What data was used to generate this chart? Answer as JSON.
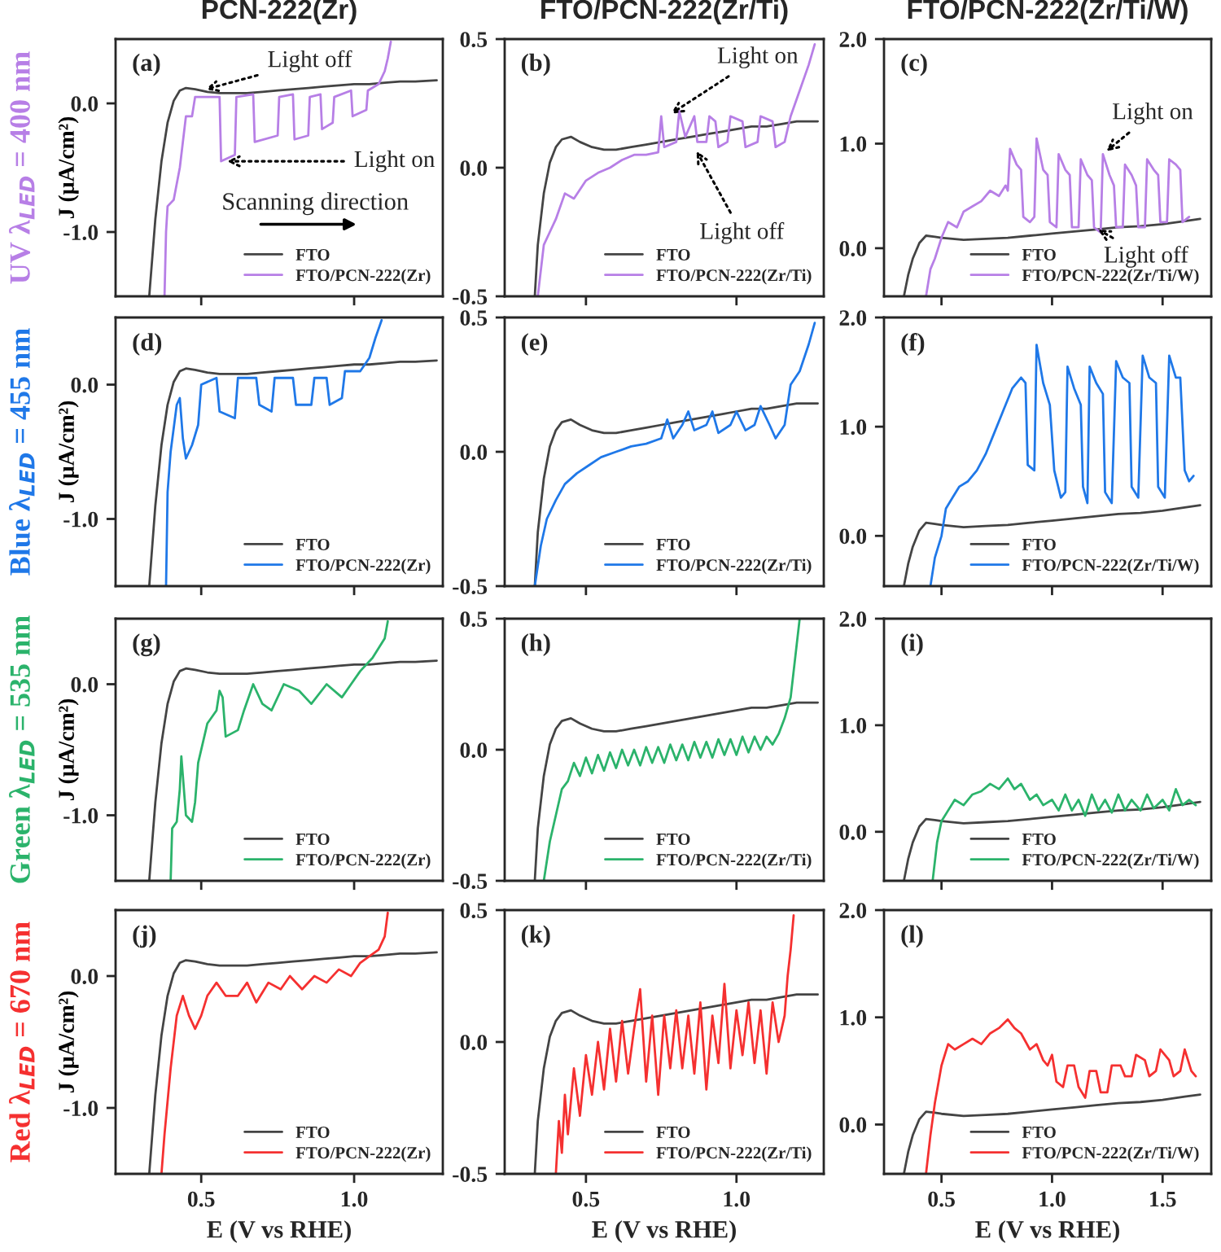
{
  "chart_data": [
    {
      "type": "line",
      "title": "PCN-222(Zr)",
      "ylabel": "UV λ$_{LED}$ = 400 nm\nJ (μA/cm²)",
      "xlim": [
        0.22,
        1.29
      ],
      "ylim": [
        -1.5,
        0.5
      ],
      "xticks": [
        {
          "value": 0.5,
          "label": null
        },
        {
          "value": 1.0,
          "label": null
        }
      ],
      "yticks": [
        {
          "value": -1.0,
          "label": "-1.0"
        },
        {
          "value": 0.0,
          "label": "0.0"
        }
      ],
      "tick_labels": "y",
      "legend": "bottom right",
      "annotations": [
        "(a)",
        {
          "text": "Light off",
          "x": 0.5,
          "y": 0.1
        },
        {
          "text": "Light on",
          "x": 0.57,
          "y": -0.45
        },
        "Scanning direction"
      ],
      "series": [
        {
          "name": "FTO",
          "color": "#444444",
          "x": [
            0.33,
            0.35,
            0.37,
            0.39,
            0.41,
            0.43,
            0.45,
            0.48,
            0.52,
            0.56,
            0.6,
            0.65,
            0.7,
            0.75,
            0.8,
            0.85,
            0.9,
            0.95,
            1.0,
            1.05,
            1.1,
            1.15,
            1.2,
            1.27
          ],
          "values": [
            -1.5,
            -0.9,
            -0.45,
            -0.15,
            0.02,
            0.1,
            0.12,
            0.11,
            0.09,
            0.08,
            0.08,
            0.08,
            0.09,
            0.1,
            0.11,
            0.12,
            0.13,
            0.14,
            0.15,
            0.15,
            0.16,
            0.17,
            0.17,
            0.18
          ]
        },
        {
          "name": "FTO/PCN-222(Zr)",
          "color": "#b77fe6",
          "x": [
            0.38,
            0.385,
            0.39,
            0.41,
            0.43,
            0.45,
            0.47,
            0.48,
            0.56,
            0.565,
            0.61,
            0.615,
            0.67,
            0.675,
            0.75,
            0.755,
            0.8,
            0.805,
            0.85,
            0.855,
            0.89,
            0.895,
            0.93,
            0.935,
            0.99,
            0.995,
            1.04,
            1.045,
            1.08,
            1.1,
            1.11,
            1.12
          ],
          "values": [
            -1.5,
            -1.0,
            -0.8,
            -0.75,
            -0.5,
            -0.1,
            -0.1,
            0.05,
            0.05,
            -0.45,
            -0.4,
            0.05,
            0.07,
            -0.3,
            -0.25,
            0.05,
            0.07,
            -0.28,
            -0.25,
            0.05,
            0.07,
            -0.2,
            -0.15,
            0.05,
            0.1,
            -0.1,
            -0.05,
            0.1,
            0.15,
            0.25,
            0.35,
            0.48
          ]
        }
      ]
    },
    {
      "type": "line",
      "title": "FTO/PCN-222(Zr/Ti)",
      "xlim": [
        0.23,
        1.29
      ],
      "ylim": [
        -0.5,
        0.5
      ],
      "xticks": [
        {
          "value": 0.5,
          "label": null
        },
        {
          "value": 1.0,
          "label": null
        }
      ],
      "yticks": [
        {
          "value": -0.5,
          "label": "-0.5"
        },
        {
          "value": 0.0,
          "label": "0.0"
        },
        {
          "value": 0.5,
          "label": "0.5"
        }
      ],
      "tick_labels": "y",
      "legend": "bottom right",
      "annotations": [
        "(b)",
        {
          "text": "Light on",
          "x": 0.77,
          "y": 0.2
        },
        {
          "text": "Light off",
          "x": 0.86,
          "y": 0.08
        }
      ],
      "series": [
        {
          "name": "FTO",
          "color": "#444444",
          "x": [
            0.33,
            0.34,
            0.36,
            0.38,
            0.4,
            0.42,
            0.45,
            0.48,
            0.52,
            0.56,
            0.6,
            0.65,
            0.7,
            0.75,
            0.8,
            0.85,
            0.9,
            0.95,
            1.0,
            1.05,
            1.1,
            1.15,
            1.2,
            1.27
          ],
          "values": [
            -0.5,
            -0.3,
            -0.1,
            0.02,
            0.08,
            0.11,
            0.12,
            0.1,
            0.08,
            0.07,
            0.07,
            0.08,
            0.09,
            0.1,
            0.11,
            0.12,
            0.13,
            0.14,
            0.15,
            0.16,
            0.16,
            0.17,
            0.18,
            0.18
          ]
        },
        {
          "name": "FTO/PCN-222(Zr/Ti)",
          "color": "#b77fe6",
          "x": [
            0.34,
            0.36,
            0.38,
            0.4,
            0.43,
            0.46,
            0.5,
            0.54,
            0.58,
            0.62,
            0.66,
            0.7,
            0.74,
            0.75,
            0.76,
            0.8,
            0.81,
            0.83,
            0.86,
            0.87,
            0.9,
            0.91,
            0.93,
            0.94,
            0.97,
            0.98,
            1.02,
            1.03,
            1.07,
            1.08,
            1.12,
            1.13,
            1.16,
            1.18,
            1.21,
            1.24,
            1.26
          ],
          "values": [
            -0.5,
            -0.3,
            -0.25,
            -0.2,
            -0.1,
            -0.12,
            -0.05,
            -0.02,
            0.0,
            0.03,
            0.05,
            0.05,
            0.06,
            0.2,
            0.08,
            0.1,
            0.22,
            0.12,
            0.2,
            0.1,
            0.1,
            0.2,
            0.18,
            0.08,
            0.1,
            0.2,
            0.18,
            0.08,
            0.1,
            0.2,
            0.18,
            0.08,
            0.1,
            0.2,
            0.3,
            0.4,
            0.48
          ]
        }
      ]
    },
    {
      "type": "line",
      "title": "FTO/PCN-222(Zr/Ti/W)",
      "xlim": [
        0.24,
        1.72
      ],
      "ylim": [
        -0.46,
        2.0
      ],
      "xticks": [
        {
          "value": 0.5,
          "label": null
        },
        {
          "value": 1.0,
          "label": null
        },
        {
          "value": 1.5,
          "label": null
        }
      ],
      "yticks": [
        {
          "value": 0.0,
          "label": "0.0"
        },
        {
          "value": 1.0,
          "label": "1.0"
        },
        {
          "value": 2.0,
          "label": "2.0"
        }
      ],
      "tick_labels": "y",
      "legend": "bottom right",
      "annotations": [
        "(c)",
        {
          "text": "Light on",
          "x": 1.23,
          "y": 0.9
        },
        {
          "text": "Light off",
          "x": 1.19,
          "y": 0.2
        }
      ],
      "series": [
        {
          "name": "FTO",
          "color": "#444444",
          "x": [
            0.33,
            0.35,
            0.37,
            0.4,
            0.43,
            0.47,
            0.5,
            0.6,
            0.7,
            0.8,
            0.9,
            1.0,
            1.1,
            1.2,
            1.3,
            1.4,
            1.5,
            1.6,
            1.67
          ],
          "values": [
            -0.46,
            -0.25,
            -0.1,
            0.05,
            0.12,
            0.11,
            0.1,
            0.08,
            0.09,
            0.1,
            0.12,
            0.14,
            0.16,
            0.18,
            0.2,
            0.21,
            0.23,
            0.26,
            0.28
          ]
        },
        {
          "name": "FTO/PCN-222(Zr/Ti/W)",
          "color": "#b77fe6",
          "x": [
            0.43,
            0.45,
            0.47,
            0.5,
            0.53,
            0.57,
            0.6,
            0.64,
            0.68,
            0.72,
            0.76,
            0.79,
            0.8,
            0.81,
            0.84,
            0.86,
            0.87,
            0.9,
            0.92,
            0.93,
            0.96,
            0.98,
            0.99,
            1.02,
            1.03,
            1.06,
            1.08,
            1.09,
            1.12,
            1.13,
            1.16,
            1.18,
            1.19,
            1.22,
            1.23,
            1.26,
            1.28,
            1.29,
            1.32,
            1.33,
            1.36,
            1.38,
            1.39,
            1.42,
            1.43,
            1.46,
            1.48,
            1.49,
            1.52,
            1.53,
            1.56,
            1.58,
            1.59,
            1.62
          ],
          "values": [
            -0.46,
            -0.2,
            -0.1,
            0.1,
            0.25,
            0.2,
            0.35,
            0.4,
            0.45,
            0.55,
            0.5,
            0.6,
            0.55,
            0.95,
            0.8,
            0.75,
            0.3,
            0.25,
            0.3,
            1.05,
            0.75,
            0.7,
            0.25,
            0.2,
            0.9,
            0.75,
            0.7,
            0.2,
            0.2,
            0.85,
            0.7,
            0.65,
            0.2,
            0.15,
            0.9,
            0.7,
            0.6,
            0.2,
            0.2,
            0.8,
            0.7,
            0.6,
            0.2,
            0.2,
            0.85,
            0.75,
            0.7,
            0.25,
            0.25,
            0.85,
            0.8,
            0.75,
            0.25,
            0.3
          ]
        }
      ]
    },
    {
      "type": "line",
      "ylabel": "Blue λ$_{LED}$ = 455 nm\nJ (μA/cm²)",
      "xlim": [
        0.22,
        1.29
      ],
      "ylim": [
        -1.5,
        0.5
      ],
      "xticks": [
        {
          "value": 0.5,
          "label": null
        },
        {
          "value": 1.0,
          "label": null
        }
      ],
      "yticks": [
        {
          "value": -1.0,
          "label": "-1.0"
        },
        {
          "value": 0.0,
          "label": "0.0"
        }
      ],
      "tick_labels": "y",
      "legend": "bottom right",
      "annotations": [
        "(d)"
      ],
      "series": [
        {
          "name": "FTO",
          "color": "#444444",
          "x": [
            0.33,
            0.35,
            0.37,
            0.39,
            0.41,
            0.43,
            0.45,
            0.48,
            0.52,
            0.56,
            0.6,
            0.65,
            0.7,
            0.75,
            0.8,
            0.85,
            0.9,
            0.95,
            1.0,
            1.05,
            1.1,
            1.15,
            1.2,
            1.27
          ],
          "values": [
            -1.5,
            -0.9,
            -0.45,
            -0.15,
            0.02,
            0.1,
            0.12,
            0.11,
            0.09,
            0.08,
            0.08,
            0.08,
            0.09,
            0.1,
            0.11,
            0.12,
            0.13,
            0.14,
            0.15,
            0.15,
            0.16,
            0.17,
            0.17,
            0.18
          ]
        },
        {
          "name": "FTO/PCN-222(Zr)",
          "color": "#1f78e8",
          "x": [
            0.385,
            0.39,
            0.4,
            0.42,
            0.43,
            0.44,
            0.45,
            0.47,
            0.49,
            0.5,
            0.55,
            0.56,
            0.61,
            0.62,
            0.68,
            0.69,
            0.73,
            0.74,
            0.8,
            0.81,
            0.86,
            0.87,
            0.91,
            0.92,
            0.96,
            0.97,
            1.02,
            1.05,
            1.07,
            1.09
          ],
          "values": [
            -1.5,
            -0.8,
            -0.5,
            -0.15,
            -0.1,
            -0.4,
            -0.55,
            -0.45,
            -0.3,
            0.0,
            0.05,
            -0.2,
            -0.25,
            0.05,
            0.05,
            -0.15,
            -0.2,
            0.05,
            0.05,
            -0.15,
            -0.15,
            0.05,
            0.05,
            -0.15,
            -0.1,
            0.1,
            0.1,
            0.2,
            0.35,
            0.48
          ]
        }
      ]
    },
    {
      "type": "line",
      "ylim": [
        -0.5,
        0.5
      ],
      "xticks": [
        {
          "value": 0.5,
          "label": null
        },
        {
          "value": 1.0,
          "label": null
        }
      ],
      "yticks": [
        {
          "value": -0.5,
          "label": "-0.5"
        },
        {
          "value": 0.0,
          "label": "0.0"
        },
        {
          "value": 0.5,
          "label": "0.5"
        }
      ],
      "tick_labels": "y",
      "legend": "bottom right",
      "annotations": [
        "(e)"
      ],
      "xlim": [
        0.23,
        1.29
      ],
      "series": [
        {
          "name": "FTO",
          "color": "#444444",
          "x": [
            0.33,
            0.34,
            0.36,
            0.38,
            0.4,
            0.42,
            0.45,
            0.48,
            0.52,
            0.56,
            0.6,
            0.65,
            0.7,
            0.75,
            0.8,
            0.85,
            0.9,
            0.95,
            1.0,
            1.05,
            1.1,
            1.15,
            1.2,
            1.27
          ],
          "values": [
            -0.5,
            -0.3,
            -0.1,
            0.02,
            0.08,
            0.11,
            0.12,
            0.1,
            0.08,
            0.07,
            0.07,
            0.08,
            0.09,
            0.1,
            0.11,
            0.12,
            0.13,
            0.14,
            0.15,
            0.16,
            0.16,
            0.17,
            0.18,
            0.18
          ]
        },
        {
          "name": "FTO/PCN-222(Zr/Ti)",
          "color": "#1f78e8",
          "x": [
            0.33,
            0.35,
            0.37,
            0.4,
            0.43,
            0.47,
            0.51,
            0.55,
            0.6,
            0.65,
            0.7,
            0.75,
            0.77,
            0.79,
            0.82,
            0.84,
            0.86,
            0.9,
            0.92,
            0.94,
            0.98,
            1.0,
            1.03,
            1.06,
            1.08,
            1.11,
            1.13,
            1.16,
            1.18,
            1.21,
            1.24,
            1.26
          ],
          "values": [
            -0.5,
            -0.35,
            -0.25,
            -0.18,
            -0.12,
            -0.08,
            -0.05,
            -0.02,
            0.0,
            0.02,
            0.03,
            0.05,
            0.12,
            0.05,
            0.1,
            0.15,
            0.08,
            0.1,
            0.15,
            0.07,
            0.1,
            0.15,
            0.08,
            0.1,
            0.17,
            0.1,
            0.05,
            0.1,
            0.25,
            0.3,
            0.4,
            0.48
          ]
        }
      ]
    },
    {
      "type": "line",
      "xlim": [
        0.24,
        1.72
      ],
      "ylim": [
        -0.46,
        2.0
      ],
      "xticks": [
        {
          "value": 0.5,
          "label": null
        },
        {
          "value": 1.0,
          "label": null
        },
        {
          "value": 1.5,
          "label": null
        }
      ],
      "yticks": [
        {
          "value": 0.0,
          "label": "0.0"
        },
        {
          "value": 1.0,
          "label": "1.0"
        },
        {
          "value": 2.0,
          "label": "2.0"
        }
      ],
      "tick_labels": "y",
      "legend": "bottom right",
      "annotations": [
        "(f)"
      ],
      "series": [
        {
          "name": "FTO",
          "color": "#444444",
          "x": [
            0.33,
            0.35,
            0.37,
            0.4,
            0.43,
            0.47,
            0.5,
            0.6,
            0.7,
            0.8,
            0.9,
            1.0,
            1.1,
            1.2,
            1.3,
            1.4,
            1.5,
            1.6,
            1.67
          ],
          "values": [
            -0.46,
            -0.25,
            -0.1,
            0.05,
            0.12,
            0.11,
            0.1,
            0.08,
            0.09,
            0.1,
            0.12,
            0.14,
            0.16,
            0.18,
            0.2,
            0.21,
            0.23,
            0.26,
            0.28
          ]
        },
        {
          "name": "FTO/PCN-222(Zr/Ti/W)",
          "color": "#1f78e8",
          "x": [
            0.45,
            0.47,
            0.5,
            0.52,
            0.55,
            0.58,
            0.62,
            0.66,
            0.7,
            0.74,
            0.78,
            0.82,
            0.86,
            0.88,
            0.89,
            0.92,
            0.93,
            0.96,
            0.99,
            1.01,
            1.04,
            1.06,
            1.07,
            1.1,
            1.13,
            1.14,
            1.16,
            1.17,
            1.2,
            1.23,
            1.24,
            1.27,
            1.29,
            1.32,
            1.35,
            1.36,
            1.39,
            1.41,
            1.44,
            1.47,
            1.48,
            1.51,
            1.53,
            1.56,
            1.58,
            1.6,
            1.62,
            1.64
          ],
          "values": [
            -0.46,
            -0.2,
            0.0,
            0.25,
            0.35,
            0.45,
            0.5,
            0.6,
            0.75,
            0.95,
            1.15,
            1.35,
            1.45,
            1.4,
            0.65,
            0.6,
            1.75,
            1.4,
            1.2,
            0.6,
            0.35,
            0.4,
            1.55,
            1.35,
            1.2,
            0.45,
            0.3,
            1.55,
            1.4,
            1.3,
            0.4,
            0.3,
            1.6,
            1.45,
            1.4,
            0.45,
            0.35,
            1.65,
            1.45,
            1.4,
            0.45,
            0.35,
            1.65,
            1.45,
            1.45,
            0.6,
            0.5,
            0.55
          ]
        }
      ]
    },
    {
      "type": "line",
      "ylabel": "Green λ$_{LED}$ = 535 nm\nJ (μA/cm²)",
      "xlim": [
        0.22,
        1.29
      ],
      "ylim": [
        -1.5,
        0.5
      ],
      "xticks": [
        {
          "value": 0.5,
          "label": null
        },
        {
          "value": 1.0,
          "label": null
        }
      ],
      "yticks": [
        {
          "value": -1.0,
          "label": "-1.0"
        },
        {
          "value": 0.0,
          "label": "0.0"
        }
      ],
      "tick_labels": "y",
      "legend": "bottom right",
      "annotations": [
        "(g)"
      ],
      "series": [
        {
          "name": "FTO",
          "color": "#444444",
          "x": [
            0.33,
            0.35,
            0.37,
            0.39,
            0.41,
            0.43,
            0.45,
            0.48,
            0.52,
            0.56,
            0.6,
            0.65,
            0.7,
            0.75,
            0.8,
            0.85,
            0.9,
            0.95,
            1.0,
            1.05,
            1.1,
            1.15,
            1.2,
            1.27
          ],
          "values": [
            -1.5,
            -0.9,
            -0.45,
            -0.15,
            0.02,
            0.1,
            0.12,
            0.11,
            0.09,
            0.08,
            0.08,
            0.08,
            0.09,
            0.1,
            0.11,
            0.12,
            0.13,
            0.14,
            0.15,
            0.15,
            0.16,
            0.17,
            0.17,
            0.18
          ]
        },
        {
          "name": "FTO/PCN-222(Zr)",
          "color": "#2bb36b",
          "x": [
            0.4,
            0.405,
            0.42,
            0.43,
            0.435,
            0.44,
            0.45,
            0.47,
            0.48,
            0.49,
            0.52,
            0.55,
            0.56,
            0.57,
            0.58,
            0.62,
            0.64,
            0.67,
            0.7,
            0.73,
            0.77,
            0.82,
            0.86,
            0.91,
            0.96,
            0.99,
            1.02,
            1.06,
            1.1,
            1.11
          ],
          "values": [
            -1.5,
            -1.1,
            -1.05,
            -0.8,
            -0.55,
            -0.7,
            -1.0,
            -1.05,
            -0.9,
            -0.6,
            -0.3,
            -0.2,
            -0.05,
            -0.1,
            -0.4,
            -0.35,
            -0.2,
            0.0,
            -0.15,
            -0.2,
            0.0,
            -0.05,
            -0.15,
            0.0,
            -0.1,
            0.0,
            0.1,
            0.2,
            0.35,
            0.48
          ]
        }
      ]
    },
    {
      "type": "line",
      "xlim": [
        0.23,
        1.29
      ],
      "ylim": [
        -0.5,
        0.5
      ],
      "xticks": [
        {
          "value": 0.5,
          "label": null
        },
        {
          "value": 1.0,
          "label": null
        }
      ],
      "yticks": [
        {
          "value": -0.5,
          "label": "-0.5"
        },
        {
          "value": 0.0,
          "label": "0.0"
        },
        {
          "value": 0.5,
          "label": "0.5"
        }
      ],
      "tick_labels": "y",
      "legend": "bottom right",
      "annotations": [
        "(h)"
      ],
      "series": [
        {
          "name": "FTO",
          "color": "#444444",
          "x": [
            0.33,
            0.34,
            0.36,
            0.38,
            0.4,
            0.42,
            0.45,
            0.48,
            0.52,
            0.56,
            0.6,
            0.65,
            0.7,
            0.75,
            0.8,
            0.85,
            0.9,
            0.95,
            1.0,
            1.05,
            1.1,
            1.15,
            1.2,
            1.27
          ],
          "values": [
            -0.5,
            -0.3,
            -0.1,
            0.02,
            0.08,
            0.11,
            0.12,
            0.1,
            0.08,
            0.07,
            0.07,
            0.08,
            0.09,
            0.1,
            0.11,
            0.12,
            0.13,
            0.14,
            0.15,
            0.16,
            0.16,
            0.17,
            0.18,
            0.18
          ]
        },
        {
          "name": "FTO/PCN-222(Zr/Ti)",
          "color": "#2bb36b",
          "x": [
            0.36,
            0.38,
            0.4,
            0.42,
            0.44,
            0.46,
            0.48,
            0.5,
            0.52,
            0.54,
            0.56,
            0.58,
            0.6,
            0.62,
            0.64,
            0.66,
            0.68,
            0.7,
            0.72,
            0.74,
            0.76,
            0.78,
            0.8,
            0.82,
            0.84,
            0.86,
            0.88,
            0.9,
            0.92,
            0.94,
            0.96,
            0.98,
            1.0,
            1.02,
            1.04,
            1.06,
            1.08,
            1.1,
            1.12,
            1.14,
            1.16,
            1.18,
            1.19,
            1.2,
            1.21
          ],
          "values": [
            -0.5,
            -0.35,
            -0.25,
            -0.15,
            -0.12,
            -0.05,
            -0.1,
            -0.03,
            -0.09,
            -0.02,
            -0.08,
            -0.01,
            -0.07,
            0.0,
            -0.06,
            0.0,
            -0.06,
            0.01,
            -0.05,
            0.01,
            -0.05,
            0.02,
            -0.04,
            0.02,
            -0.04,
            0.03,
            -0.03,
            0.03,
            -0.03,
            0.04,
            -0.02,
            0.04,
            -0.02,
            0.05,
            -0.01,
            0.05,
            0.0,
            0.05,
            0.02,
            0.06,
            0.12,
            0.2,
            0.3,
            0.4,
            0.5
          ]
        }
      ]
    },
    {
      "type": "line",
      "xlim": [
        0.24,
        1.72
      ],
      "ylim": [
        -0.46,
        2.0
      ],
      "xticks": [
        {
          "value": 0.5,
          "label": null
        },
        {
          "value": 1.0,
          "label": null
        },
        {
          "value": 1.5,
          "label": null
        }
      ],
      "yticks": [
        {
          "value": 0.0,
          "label": "0.0"
        },
        {
          "value": 1.0,
          "label": "1.0"
        },
        {
          "value": 2.0,
          "label": "2.0"
        }
      ],
      "tick_labels": "y",
      "legend": "bottom right",
      "annotations": [
        "(i)"
      ],
      "series": [
        {
          "name": "FTO",
          "color": "#444444",
          "x": [
            0.33,
            0.35,
            0.37,
            0.4,
            0.43,
            0.47,
            0.5,
            0.6,
            0.7,
            0.8,
            0.9,
            1.0,
            1.1,
            1.2,
            1.3,
            1.4,
            1.5,
            1.6,
            1.67
          ],
          "values": [
            -0.46,
            -0.25,
            -0.1,
            0.05,
            0.12,
            0.11,
            0.1,
            0.08,
            0.09,
            0.1,
            0.12,
            0.14,
            0.16,
            0.18,
            0.2,
            0.21,
            0.23,
            0.26,
            0.28
          ]
        },
        {
          "name": "FTO/PCN-222(Zr/Ti/W)",
          "color": "#2bb36b",
          "x": [
            0.46,
            0.48,
            0.5,
            0.53,
            0.56,
            0.6,
            0.64,
            0.68,
            0.72,
            0.76,
            0.8,
            0.83,
            0.86,
            0.9,
            0.93,
            0.96,
            1.0,
            1.03,
            1.06,
            1.09,
            1.12,
            1.15,
            1.18,
            1.21,
            1.24,
            1.27,
            1.3,
            1.33,
            1.36,
            1.4,
            1.43,
            1.46,
            1.5,
            1.53,
            1.56,
            1.59,
            1.62,
            1.65
          ],
          "values": [
            -0.46,
            -0.1,
            0.1,
            0.2,
            0.3,
            0.25,
            0.35,
            0.38,
            0.45,
            0.4,
            0.5,
            0.4,
            0.45,
            0.3,
            0.35,
            0.25,
            0.3,
            0.2,
            0.35,
            0.2,
            0.3,
            0.15,
            0.35,
            0.2,
            0.3,
            0.18,
            0.35,
            0.2,
            0.3,
            0.2,
            0.35,
            0.22,
            0.3,
            0.2,
            0.4,
            0.25,
            0.3,
            0.25
          ]
        }
      ]
    },
    {
      "type": "line",
      "ylabel": "Red λ$_{LED}$ = 670 nm\nJ (μA/cm²)",
      "xlabel": "E (V vs RHE)",
      "xlim": [
        0.22,
        1.29
      ],
      "ylim": [
        -1.5,
        0.5
      ],
      "xticks": [
        {
          "value": 0.5,
          "label": "0.5"
        },
        {
          "value": 1.0,
          "label": "1.0"
        }
      ],
      "yticks": [
        {
          "value": -1.0,
          "label": "-1.0"
        },
        {
          "value": 0.0,
          "label": "0.0"
        }
      ],
      "legend": "bottom right",
      "annotations": [
        "(j)"
      ],
      "series": [
        {
          "name": "FTO",
          "color": "#444444",
          "x": [
            0.33,
            0.35,
            0.37,
            0.39,
            0.41,
            0.43,
            0.45,
            0.48,
            0.52,
            0.56,
            0.6,
            0.65,
            0.7,
            0.75,
            0.8,
            0.85,
            0.9,
            0.95,
            1.0,
            1.05,
            1.1,
            1.15,
            1.2,
            1.27
          ],
          "values": [
            -1.5,
            -0.9,
            -0.45,
            -0.15,
            0.02,
            0.1,
            0.12,
            0.11,
            0.09,
            0.08,
            0.08,
            0.08,
            0.09,
            0.1,
            0.11,
            0.12,
            0.13,
            0.14,
            0.15,
            0.15,
            0.16,
            0.17,
            0.17,
            0.18
          ]
        },
        {
          "name": "FTO/PCN-222(Zr)",
          "color": "#f53030",
          "x": [
            0.37,
            0.38,
            0.4,
            0.42,
            0.44,
            0.46,
            0.48,
            0.5,
            0.52,
            0.55,
            0.58,
            0.62,
            0.65,
            0.68,
            0.72,
            0.76,
            0.79,
            0.83,
            0.87,
            0.91,
            0.95,
            0.99,
            1.02,
            1.05,
            1.08,
            1.1,
            1.11
          ],
          "values": [
            -1.5,
            -1.2,
            -0.7,
            -0.3,
            -0.15,
            -0.3,
            -0.4,
            -0.3,
            -0.15,
            -0.05,
            -0.15,
            -0.15,
            -0.05,
            -0.2,
            -0.05,
            -0.1,
            0.0,
            -0.1,
            0.0,
            -0.05,
            0.05,
            0.0,
            0.1,
            0.15,
            0.2,
            0.3,
            0.48
          ]
        }
      ]
    },
    {
      "type": "line",
      "xlabel": "E (V vs RHE)",
      "xlim": [
        0.23,
        1.29
      ],
      "ylim": [
        -0.5,
        0.5
      ],
      "xticks": [
        {
          "value": 0.5,
          "label": "0.5"
        },
        {
          "value": 1.0,
          "label": "1.0"
        }
      ],
      "yticks": [
        {
          "value": -0.5,
          "label": "-0.5"
        },
        {
          "value": 0.0,
          "label": "0.0"
        },
        {
          "value": 0.5,
          "label": "0.5"
        }
      ],
      "legend": "bottom right",
      "annotations": [
        "(k)"
      ],
      "series": [
        {
          "name": "FTO",
          "color": "#444444",
          "x": [
            0.33,
            0.34,
            0.36,
            0.38,
            0.4,
            0.42,
            0.45,
            0.48,
            0.52,
            0.56,
            0.6,
            0.65,
            0.7,
            0.75,
            0.8,
            0.85,
            0.9,
            0.95,
            1.0,
            1.05,
            1.1,
            1.15,
            1.2,
            1.27
          ],
          "values": [
            -0.5,
            -0.3,
            -0.1,
            0.02,
            0.08,
            0.11,
            0.12,
            0.1,
            0.08,
            0.07,
            0.07,
            0.08,
            0.09,
            0.1,
            0.11,
            0.12,
            0.13,
            0.14,
            0.15,
            0.16,
            0.16,
            0.17,
            0.18,
            0.18
          ]
        },
        {
          "name": "FTO/PCN-222(Zr/Ti)",
          "color": "#f53030",
          "x": [
            0.4,
            0.41,
            0.42,
            0.43,
            0.44,
            0.46,
            0.48,
            0.5,
            0.52,
            0.54,
            0.56,
            0.58,
            0.6,
            0.62,
            0.64,
            0.66,
            0.68,
            0.7,
            0.72,
            0.74,
            0.76,
            0.78,
            0.8,
            0.82,
            0.84,
            0.86,
            0.88,
            0.9,
            0.92,
            0.94,
            0.96,
            0.98,
            1.0,
            1.02,
            1.04,
            1.06,
            1.08,
            1.1,
            1.12,
            1.14,
            1.16,
            1.17,
            1.18,
            1.19
          ],
          "values": [
            -0.5,
            -0.3,
            -0.42,
            -0.2,
            -0.35,
            -0.1,
            -0.28,
            -0.05,
            -0.2,
            0.0,
            -0.18,
            0.05,
            -0.15,
            0.08,
            -0.12,
            0.05,
            0.2,
            -0.15,
            0.1,
            -0.2,
            0.1,
            -0.1,
            0.12,
            -0.1,
            0.1,
            -0.12,
            0.15,
            -0.18,
            0.1,
            -0.08,
            0.22,
            -0.1,
            0.12,
            -0.05,
            0.15,
            -0.08,
            0.12,
            -0.12,
            0.15,
            0.0,
            0.1,
            0.25,
            0.35,
            0.48
          ]
        }
      ]
    },
    {
      "type": "line",
      "xlabel": "E (V vs RHE)",
      "xlim": [
        0.24,
        1.72
      ],
      "ylim": [
        -0.46,
        2.0
      ],
      "xticks": [
        {
          "value": 0.5,
          "label": "0.5"
        },
        {
          "value": 1.0,
          "label": "1.0"
        },
        {
          "value": 1.5,
          "label": "1.5"
        }
      ],
      "yticks": [
        {
          "value": 0.0,
          "label": "0.0"
        },
        {
          "value": 1.0,
          "label": "1.0"
        },
        {
          "value": 2.0,
          "label": "2.0"
        }
      ],
      "legend": "bottom right",
      "annotations": [
        "(l)"
      ],
      "series": [
        {
          "name": "FTO",
          "color": "#444444",
          "x": [
            0.33,
            0.35,
            0.37,
            0.4,
            0.43,
            0.47,
            0.5,
            0.6,
            0.7,
            0.8,
            0.9,
            1.0,
            1.1,
            1.2,
            1.3,
            1.4,
            1.5,
            1.6,
            1.67
          ],
          "values": [
            -0.46,
            -0.25,
            -0.1,
            0.05,
            0.12,
            0.11,
            0.1,
            0.08,
            0.09,
            0.1,
            0.12,
            0.14,
            0.16,
            0.18,
            0.2,
            0.21,
            0.23,
            0.26,
            0.28
          ]
        },
        {
          "name": "FTO/PCN-222(Zr/Ti/W)",
          "color": "#f53030",
          "x": [
            0.43,
            0.45,
            0.47,
            0.5,
            0.53,
            0.56,
            0.6,
            0.64,
            0.68,
            0.72,
            0.76,
            0.8,
            0.83,
            0.86,
            0.9,
            0.93,
            0.96,
            0.98,
            1.0,
            1.02,
            1.05,
            1.07,
            1.1,
            1.12,
            1.15,
            1.17,
            1.2,
            1.22,
            1.25,
            1.27,
            1.31,
            1.33,
            1.36,
            1.38,
            1.42,
            1.44,
            1.47,
            1.49,
            1.53,
            1.55,
            1.58,
            1.6,
            1.63,
            1.65
          ],
          "values": [
            -0.46,
            -0.1,
            0.2,
            0.55,
            0.75,
            0.7,
            0.75,
            0.8,
            0.75,
            0.85,
            0.9,
            0.98,
            0.9,
            0.85,
            0.7,
            0.75,
            0.6,
            0.55,
            0.65,
            0.4,
            0.35,
            0.55,
            0.55,
            0.35,
            0.25,
            0.5,
            0.5,
            0.3,
            0.3,
            0.55,
            0.55,
            0.45,
            0.45,
            0.65,
            0.6,
            0.45,
            0.5,
            0.7,
            0.6,
            0.45,
            0.5,
            0.7,
            0.5,
            0.45
          ]
        }
      ]
    }
  ]
}
